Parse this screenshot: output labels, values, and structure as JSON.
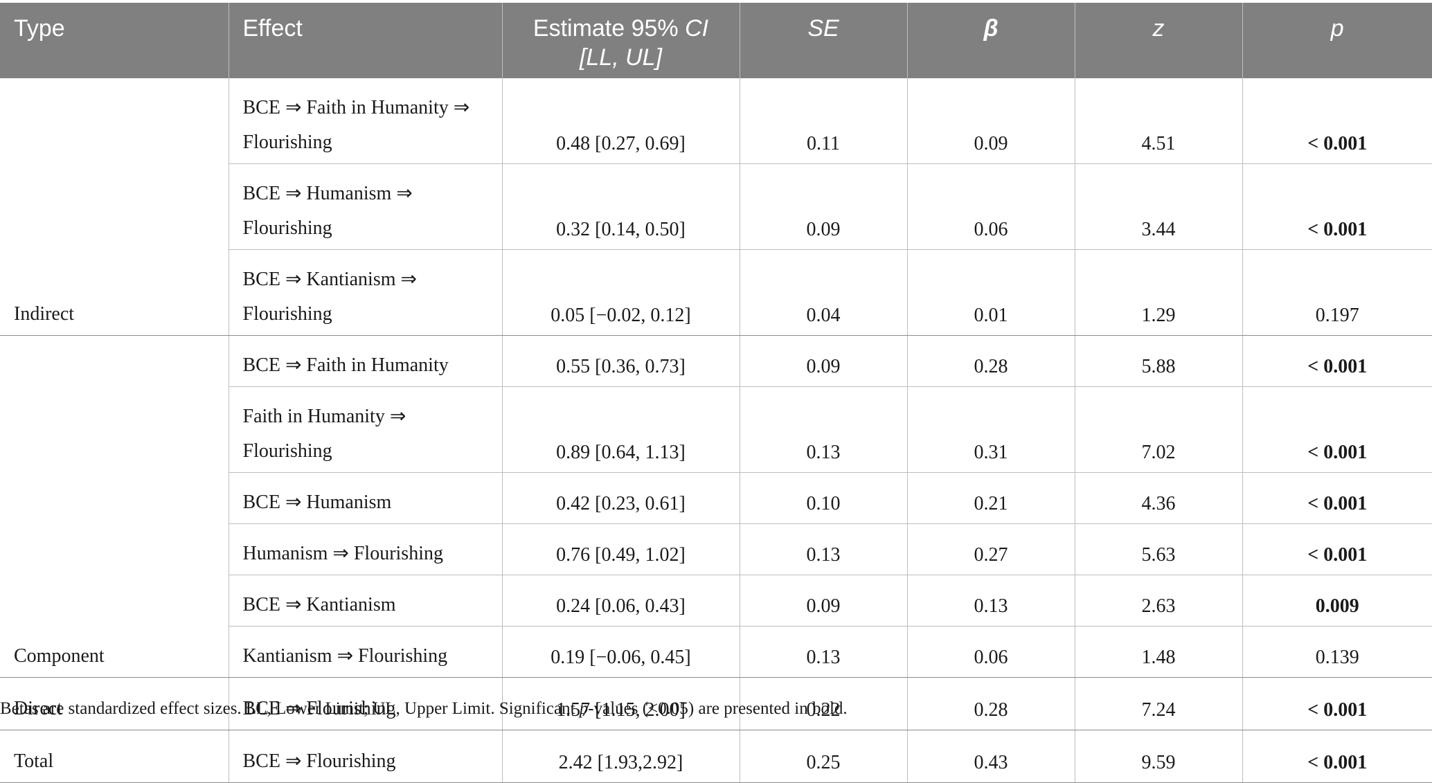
{
  "headers": {
    "type": "Type",
    "effect": "Effect",
    "estimate_line1": "Estimate 95% ",
    "estimate_ci": "CI",
    "estimate_line2": "[LL, UL]",
    "se": "SE",
    "beta": "β",
    "z": "z",
    "p": "p"
  },
  "rows": [
    {
      "type": "",
      "effect1": "BCE ⇒ Faith in Humanity ⇒",
      "effect2": "Flourishing",
      "estimate": "0.48 [0.27, 0.69]",
      "se": "0.11",
      "beta": "0.09",
      "z": "4.51",
      "p": "< 0.001",
      "bold": true
    },
    {
      "type": "",
      "effect1": "BCE ⇒ Humanism ⇒",
      "effect2": "Flourishing",
      "estimate": "0.32 [0.14, 0.50]",
      "se": "0.09",
      "beta": "0.06",
      "z": "3.44",
      "p": "< 0.001",
      "bold": true
    },
    {
      "type": "Indirect",
      "effect1": "BCE ⇒ Kantianism ⇒",
      "effect2": "Flourishing",
      "estimate": "0.05 [−0.02, 0.12]",
      "se": "0.04",
      "beta": "0.01",
      "z": "1.29",
      "p": "0.197",
      "bold": false
    },
    {
      "type": "",
      "effect1": "BCE ⇒ Faith in Humanity",
      "effect2": "",
      "estimate": "0.55 [0.36, 0.73]",
      "se": "0.09",
      "beta": "0.28",
      "z": "5.88",
      "p": "< 0.001",
      "bold": true
    },
    {
      "type": "",
      "effect1": "Faith in Humanity ⇒",
      "effect2": "Flourishing",
      "estimate": "0.89 [0.64, 1.13]",
      "se": "0.13",
      "beta": "0.31",
      "z": "7.02",
      "p": "< 0.001",
      "bold": true
    },
    {
      "type": "",
      "effect1": "BCE ⇒ Humanism",
      "effect2": "",
      "estimate": "0.42 [0.23, 0.61]",
      "se": "0.10",
      "beta": "0.21",
      "z": "4.36",
      "p": "< 0.001",
      "bold": true
    },
    {
      "type": "",
      "effect1": "Humanism ⇒ Flourishing",
      "effect2": "",
      "estimate": "0.76 [0.49, 1.02]",
      "se": "0.13",
      "beta": "0.27",
      "z": "5.63",
      "p": "< 0.001",
      "bold": true
    },
    {
      "type": "",
      "effect1": "BCE ⇒ Kantianism",
      "effect2": "",
      "estimate": "0.24 [0.06, 0.43]",
      "se": "0.09",
      "beta": "0.13",
      "z": "2.63",
      "p": "0.009",
      "bold": true
    },
    {
      "type": "Component",
      "effect1": "Kantianism ⇒ Flourishing",
      "effect2": "",
      "estimate": "0.19 [−0.06, 0.45]",
      "se": "0.13",
      "beta": "0.06",
      "z": "1.48",
      "p": "0.139",
      "bold": false
    },
    {
      "type": "Direct",
      "effect1": "BCE ⇒ Flourishing",
      "effect2": "",
      "estimate": "1.57 [1.15, 2.00]",
      "se": "0.22",
      "beta": "0.28",
      "z": "7.24",
      "p": "< 0.001",
      "bold": true
    },
    {
      "type": "Total",
      "effect1": "BCE ⇒ Flourishing",
      "effect2": "",
      "estimate": "2.42 [1.93,2.92]",
      "se": "0.25",
      "beta": "0.43",
      "z": "9.59",
      "p": "< 0.001",
      "bold": true
    }
  ],
  "footnote": {
    "part1": "Betas are standardized effect sizes. LL, Lower Limit; UL, Upper Limit. Significant ",
    "p": "p",
    "part2": "-values (<0.05) are presented in bold."
  }
}
